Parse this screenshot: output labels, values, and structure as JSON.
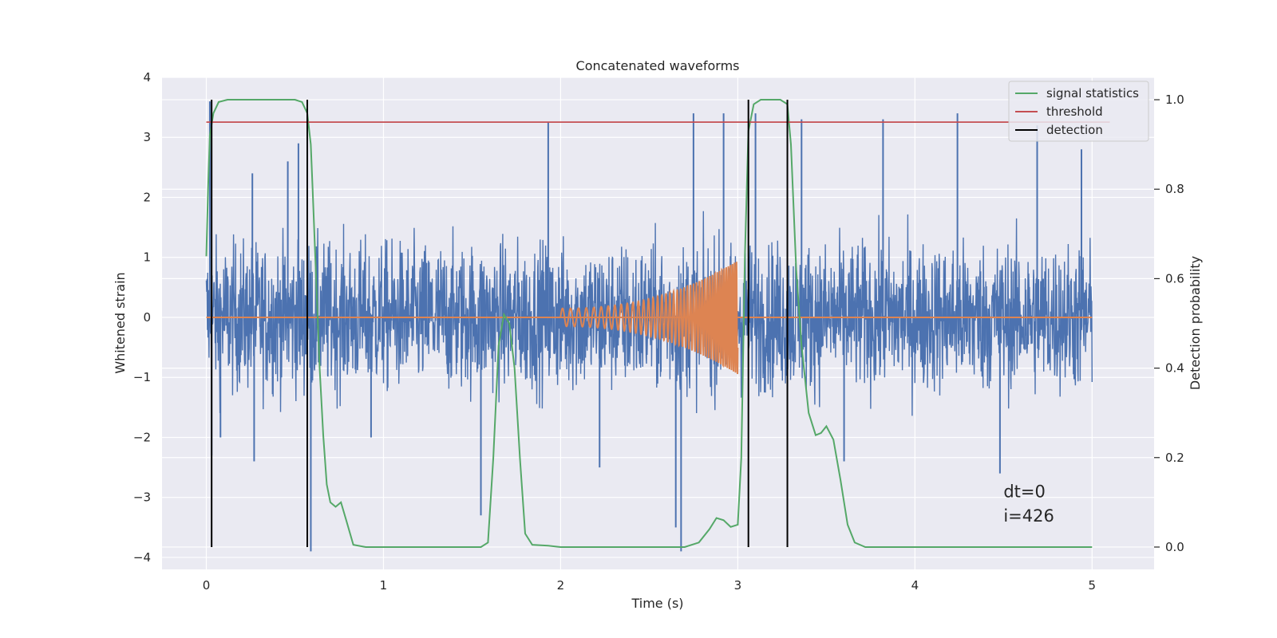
{
  "chart_data": {
    "type": "line",
    "title": "Concatenated waveforms",
    "xlabel": "Time (s)",
    "ylabel": "Whitened strain",
    "y2label": "Detection probability",
    "xlim": [
      -0.25,
      5.35
    ],
    "ylim": [
      -4.2,
      4.0
    ],
    "y2lim": [
      -0.05,
      1.05
    ],
    "x_ticks": [
      0,
      1,
      2,
      3,
      4,
      5
    ],
    "y_ticks": [
      -4,
      -3,
      -2,
      -1,
      0,
      1,
      2,
      3,
      4
    ],
    "y2_ticks": [
      0.0,
      0.2,
      0.4,
      0.6,
      0.8,
      1.0
    ],
    "x_tick_labels": [
      "0",
      "1",
      "2",
      "3",
      "4",
      "5"
    ],
    "y_tick_labels": [
      "−4",
      "−3",
      "−2",
      "−1",
      "0",
      "1",
      "2",
      "3",
      "4"
    ],
    "y2_tick_labels": [
      "0.0",
      "0.2",
      "0.4",
      "0.6",
      "0.8",
      "1.0"
    ],
    "grid": true,
    "legend_position": "top-right",
    "legend": [
      {
        "label": "signal statistics",
        "color": "#55a868",
        "kind": "line"
      },
      {
        "label": "threshold",
        "color": "#c44e52",
        "kind": "line"
      },
      {
        "label": "detection",
        "color": "#000000",
        "kind": "line"
      }
    ],
    "series": [
      {
        "name": "noisy strain (unlabeled)",
        "axis": "left",
        "color": "#4c72b0",
        "kind": "noise",
        "x_range": [
          0,
          5
        ],
        "amplitude_envelope": 2.3,
        "spikes": [
          {
            "x": 0.02,
            "y": 3.6
          },
          {
            "x": 0.03,
            "y": -2.3
          },
          {
            "x": 0.26,
            "y": 2.4
          },
          {
            "x": 0.27,
            "y": -2.4
          },
          {
            "x": 0.46,
            "y": 2.6
          },
          {
            "x": 0.52,
            "y": 2.9
          },
          {
            "x": 0.59,
            "y": -3.9
          },
          {
            "x": 0.93,
            "y": -2.0
          },
          {
            "x": 1.55,
            "y": -3.3
          },
          {
            "x": 1.93,
            "y": 3.25
          },
          {
            "x": 2.22,
            "y": -2.5
          },
          {
            "x": 2.65,
            "y": -3.5
          },
          {
            "x": 2.68,
            "y": -3.9
          },
          {
            "x": 2.75,
            "y": 3.4
          },
          {
            "x": 2.92,
            "y": 3.4
          },
          {
            "x": 3.1,
            "y": 3.4
          },
          {
            "x": 3.36,
            "y": 3.3
          },
          {
            "x": 3.6,
            "y": -2.4
          },
          {
            "x": 3.82,
            "y": 3.3
          },
          {
            "x": 4.24,
            "y": 3.4
          },
          {
            "x": 4.48,
            "y": -2.6
          },
          {
            "x": 4.69,
            "y": 3.2
          },
          {
            "x": 4.94,
            "y": 2.8
          },
          {
            "x": 0.08,
            "y": -2.0
          }
        ]
      },
      {
        "name": "injected waveform (unlabeled)",
        "axis": "left",
        "color": "#dd8452",
        "kind": "chirp",
        "baseline": [
          [
            0,
            0
          ],
          [
            5,
            0
          ]
        ],
        "chirp_x_range": [
          2.0,
          3.0
        ],
        "chirp_start_amplitude": 0.15,
        "chirp_end_amplitude": 0.95
      },
      {
        "name": "signal statistics",
        "axis": "right",
        "color": "#55a868",
        "points": [
          [
            0.0,
            0.65
          ],
          [
            0.01,
            0.8
          ],
          [
            0.02,
            0.92
          ],
          [
            0.04,
            0.97
          ],
          [
            0.07,
            0.995
          ],
          [
            0.12,
            1.0
          ],
          [
            0.5,
            1.0
          ],
          [
            0.54,
            0.995
          ],
          [
            0.57,
            0.97
          ],
          [
            0.59,
            0.9
          ],
          [
            0.6,
            0.8
          ],
          [
            0.62,
            0.6
          ],
          [
            0.64,
            0.4
          ],
          [
            0.66,
            0.25
          ],
          [
            0.68,
            0.14
          ],
          [
            0.7,
            0.1
          ],
          [
            0.73,
            0.09
          ],
          [
            0.76,
            0.1
          ],
          [
            0.79,
            0.06
          ],
          [
            0.83,
            0.005
          ],
          [
            0.9,
            0.0
          ],
          [
            1.55,
            0.0
          ],
          [
            1.59,
            0.01
          ],
          [
            1.62,
            0.2
          ],
          [
            1.65,
            0.45
          ],
          [
            1.68,
            0.52
          ],
          [
            1.71,
            0.5
          ],
          [
            1.74,
            0.4
          ],
          [
            1.77,
            0.2
          ],
          [
            1.8,
            0.03
          ],
          [
            1.84,
            0.005
          ],
          [
            1.93,
            0.003
          ],
          [
            2.0,
            0.0
          ],
          [
            2.7,
            0.0
          ],
          [
            2.78,
            0.01
          ],
          [
            2.84,
            0.04
          ],
          [
            2.88,
            0.065
          ],
          [
            2.92,
            0.06
          ],
          [
            2.96,
            0.045
          ],
          [
            3.0,
            0.05
          ],
          [
            3.02,
            0.2
          ],
          [
            3.04,
            0.65
          ],
          [
            3.06,
            0.93
          ],
          [
            3.09,
            0.99
          ],
          [
            3.13,
            1.0
          ],
          [
            3.24,
            1.0
          ],
          [
            3.28,
            0.99
          ],
          [
            3.3,
            0.9
          ],
          [
            3.33,
            0.62
          ],
          [
            3.36,
            0.45
          ],
          [
            3.4,
            0.3
          ],
          [
            3.44,
            0.25
          ],
          [
            3.47,
            0.255
          ],
          [
            3.5,
            0.27
          ],
          [
            3.54,
            0.24
          ],
          [
            3.58,
            0.15
          ],
          [
            3.62,
            0.05
          ],
          [
            3.66,
            0.01
          ],
          [
            3.72,
            0.0
          ],
          [
            5.0,
            0.0
          ]
        ]
      },
      {
        "name": "threshold",
        "axis": "right",
        "color": "#c44e52",
        "points": [
          [
            0.0,
            0.95
          ],
          [
            5.1,
            0.95
          ]
        ]
      },
      {
        "name": "detection",
        "axis": "right",
        "color": "#000000",
        "vlines": [
          0.03,
          0.57,
          3.06,
          3.28
        ],
        "y_range": [
          0.0,
          1.0
        ]
      }
    ],
    "annotations": [
      {
        "text": "dt=0",
        "x": 4.5,
        "y": -3.0
      },
      {
        "text": "i=426",
        "x": 4.5,
        "y": -3.4
      }
    ]
  }
}
